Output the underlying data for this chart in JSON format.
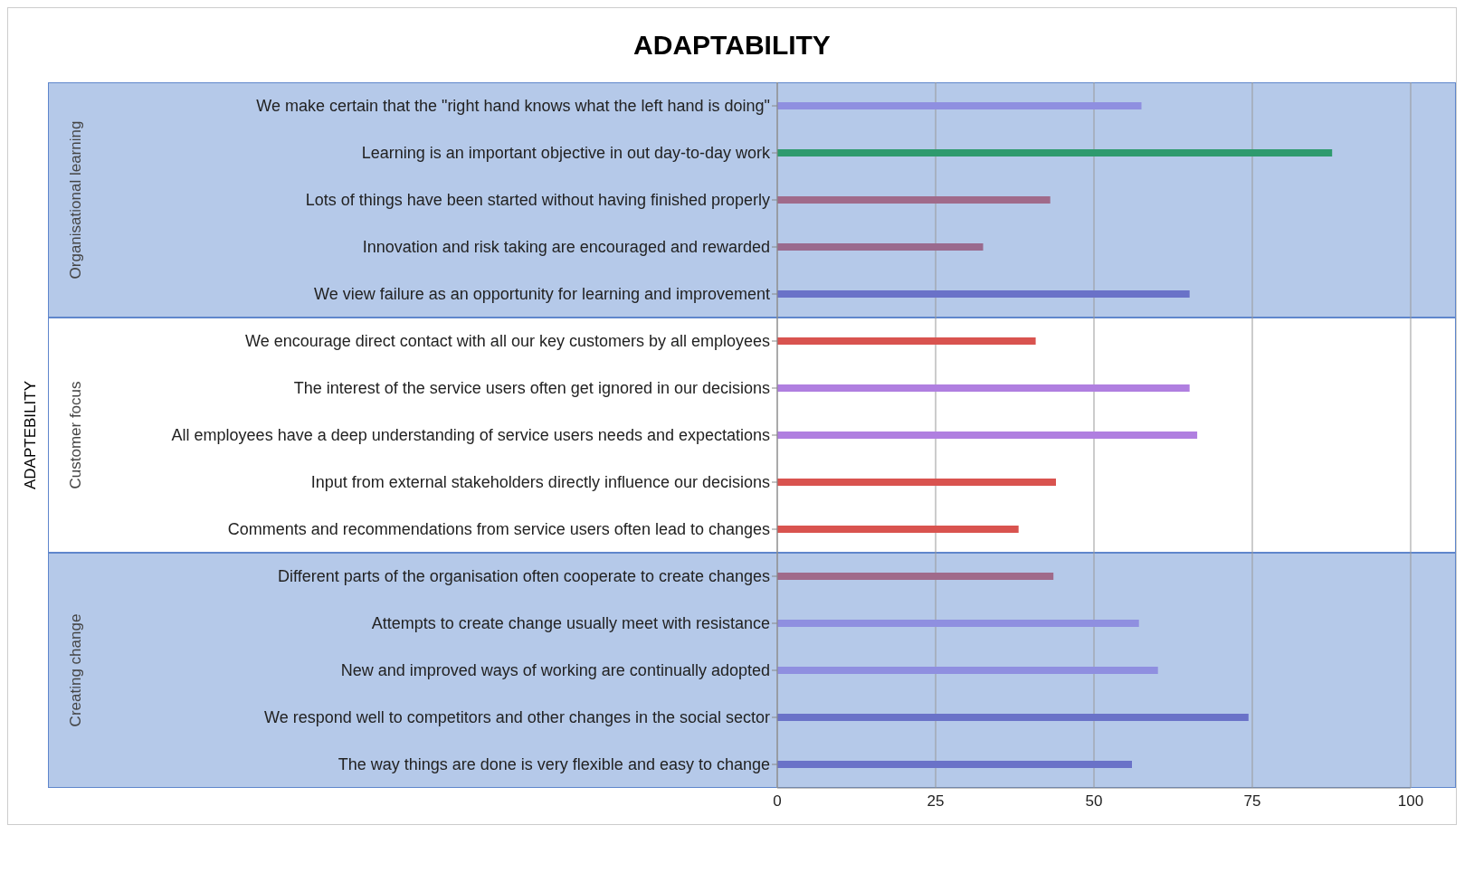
{
  "chart_data": {
    "type": "bar",
    "orientation": "horizontal",
    "title": "ADAPTABILITY",
    "annotations": [
      "ADAPTEBILITY"
    ],
    "categories": [
      "We make certain that the \"right hand knows what the left hand is doing\"",
      "Learning is an important objective in out day-to-day work",
      "Lots of things have been started without having finished properly",
      "Innovation and risk taking are encouraged and rewarded",
      "We view failure as an opportunity for learning and improvement",
      "We encourage direct contact with all our key customers by all employees",
      "The interest of the service users often get ignored in our decisions",
      "All employees have a deep understanding of service users needs and expectations",
      "Input from external stakeholders directly influence our decisions",
      "Comments and recommendations from service users often lead to changes",
      "Different parts of the organisation often cooperate to create changes",
      "Attempts to create change usually meet with resistance",
      "New and improved ways of working are continually adopted",
      "We respond well to competitors and other changes in the social sector",
      "The way things are done is very flexible and easy to change"
    ],
    "values": [
      57.5,
      87.6,
      43.1,
      32.5,
      65.1,
      40.8,
      65.1,
      66.3,
      44.0,
      38.1,
      43.6,
      57.1,
      60.1,
      74.4,
      56.0
    ],
    "colors": [
      "#8f8fe0",
      "#2e9a6e",
      "#a06a8a",
      "#9a6a8e",
      "#6a72c8",
      "#d9534f",
      "#b07fe0",
      "#b07fe0",
      "#d9534f",
      "#d9534f",
      "#a06a8a",
      "#8f8fe0",
      "#8f8fe0",
      "#6a72c8",
      "#6a72c8"
    ],
    "xlim": [
      0,
      100
    ],
    "xticks": [
      0,
      25,
      50,
      75,
      100
    ],
    "grid": "x",
    "bands": [
      {
        "axis": "y",
        "from": "We make certain that the \"right hand knows what the left hand is doing\"",
        "to": "We view failure as an opportunity for learning and improvement",
        "label": "Organisational learning",
        "color": "#a9c0e6"
      },
      {
        "axis": "y",
        "from": "We encourage direct contact with all our key customers by all employees",
        "to": "Comments and recommendations from service users often lead to changes",
        "label": "Customer focus",
        "color": "#ffffff"
      },
      {
        "axis": "y",
        "from": "Different parts of the organisation often cooperate to create changes",
        "to": "The way things are done is very flexible and easy to change",
        "label": "Creating change",
        "color": "#a9c0e6"
      }
    ]
  }
}
